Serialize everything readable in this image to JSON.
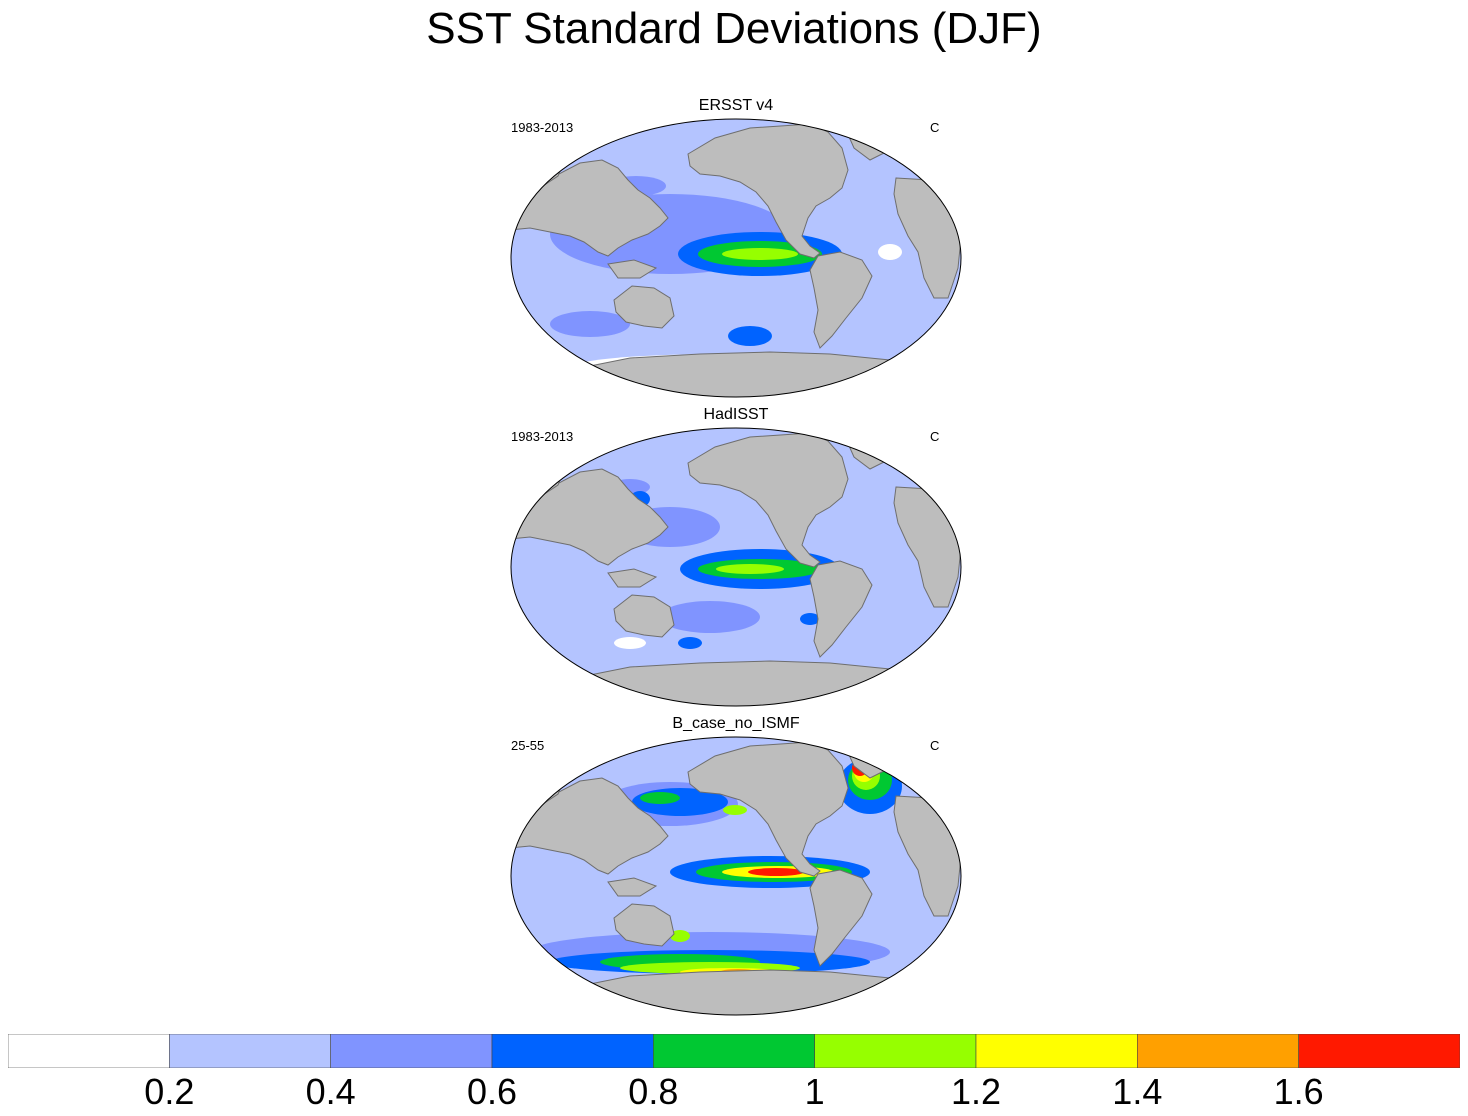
{
  "title": "SST Standard Deviations (DJF)",
  "colors": {
    "land": "#bdbdbd",
    "coast": "#6e6e6e",
    "levels": [
      "#ffffff",
      "#b4c4ff",
      "#8094ff",
      "#0063ff",
      "#00c832",
      "#96ff00",
      "#ffff00",
      "#ffa000",
      "#ff1900"
    ]
  },
  "panels": [
    {
      "title": "ERSST v4",
      "left": "1983-2013",
      "right": "C",
      "variant": "ersst"
    },
    {
      "title": "HadISST",
      "left": "1983-2013",
      "right": "C",
      "variant": "hadisst"
    },
    {
      "title": "B_case_no_ISMF",
      "left": "25-55",
      "right": "C",
      "variant": "bcase"
    }
  ],
  "colorbar": {
    "labels": [
      "0.2",
      "0.4",
      "0.6",
      "0.8",
      "1",
      "1.2",
      "1.4",
      "1.6"
    ]
  }
}
